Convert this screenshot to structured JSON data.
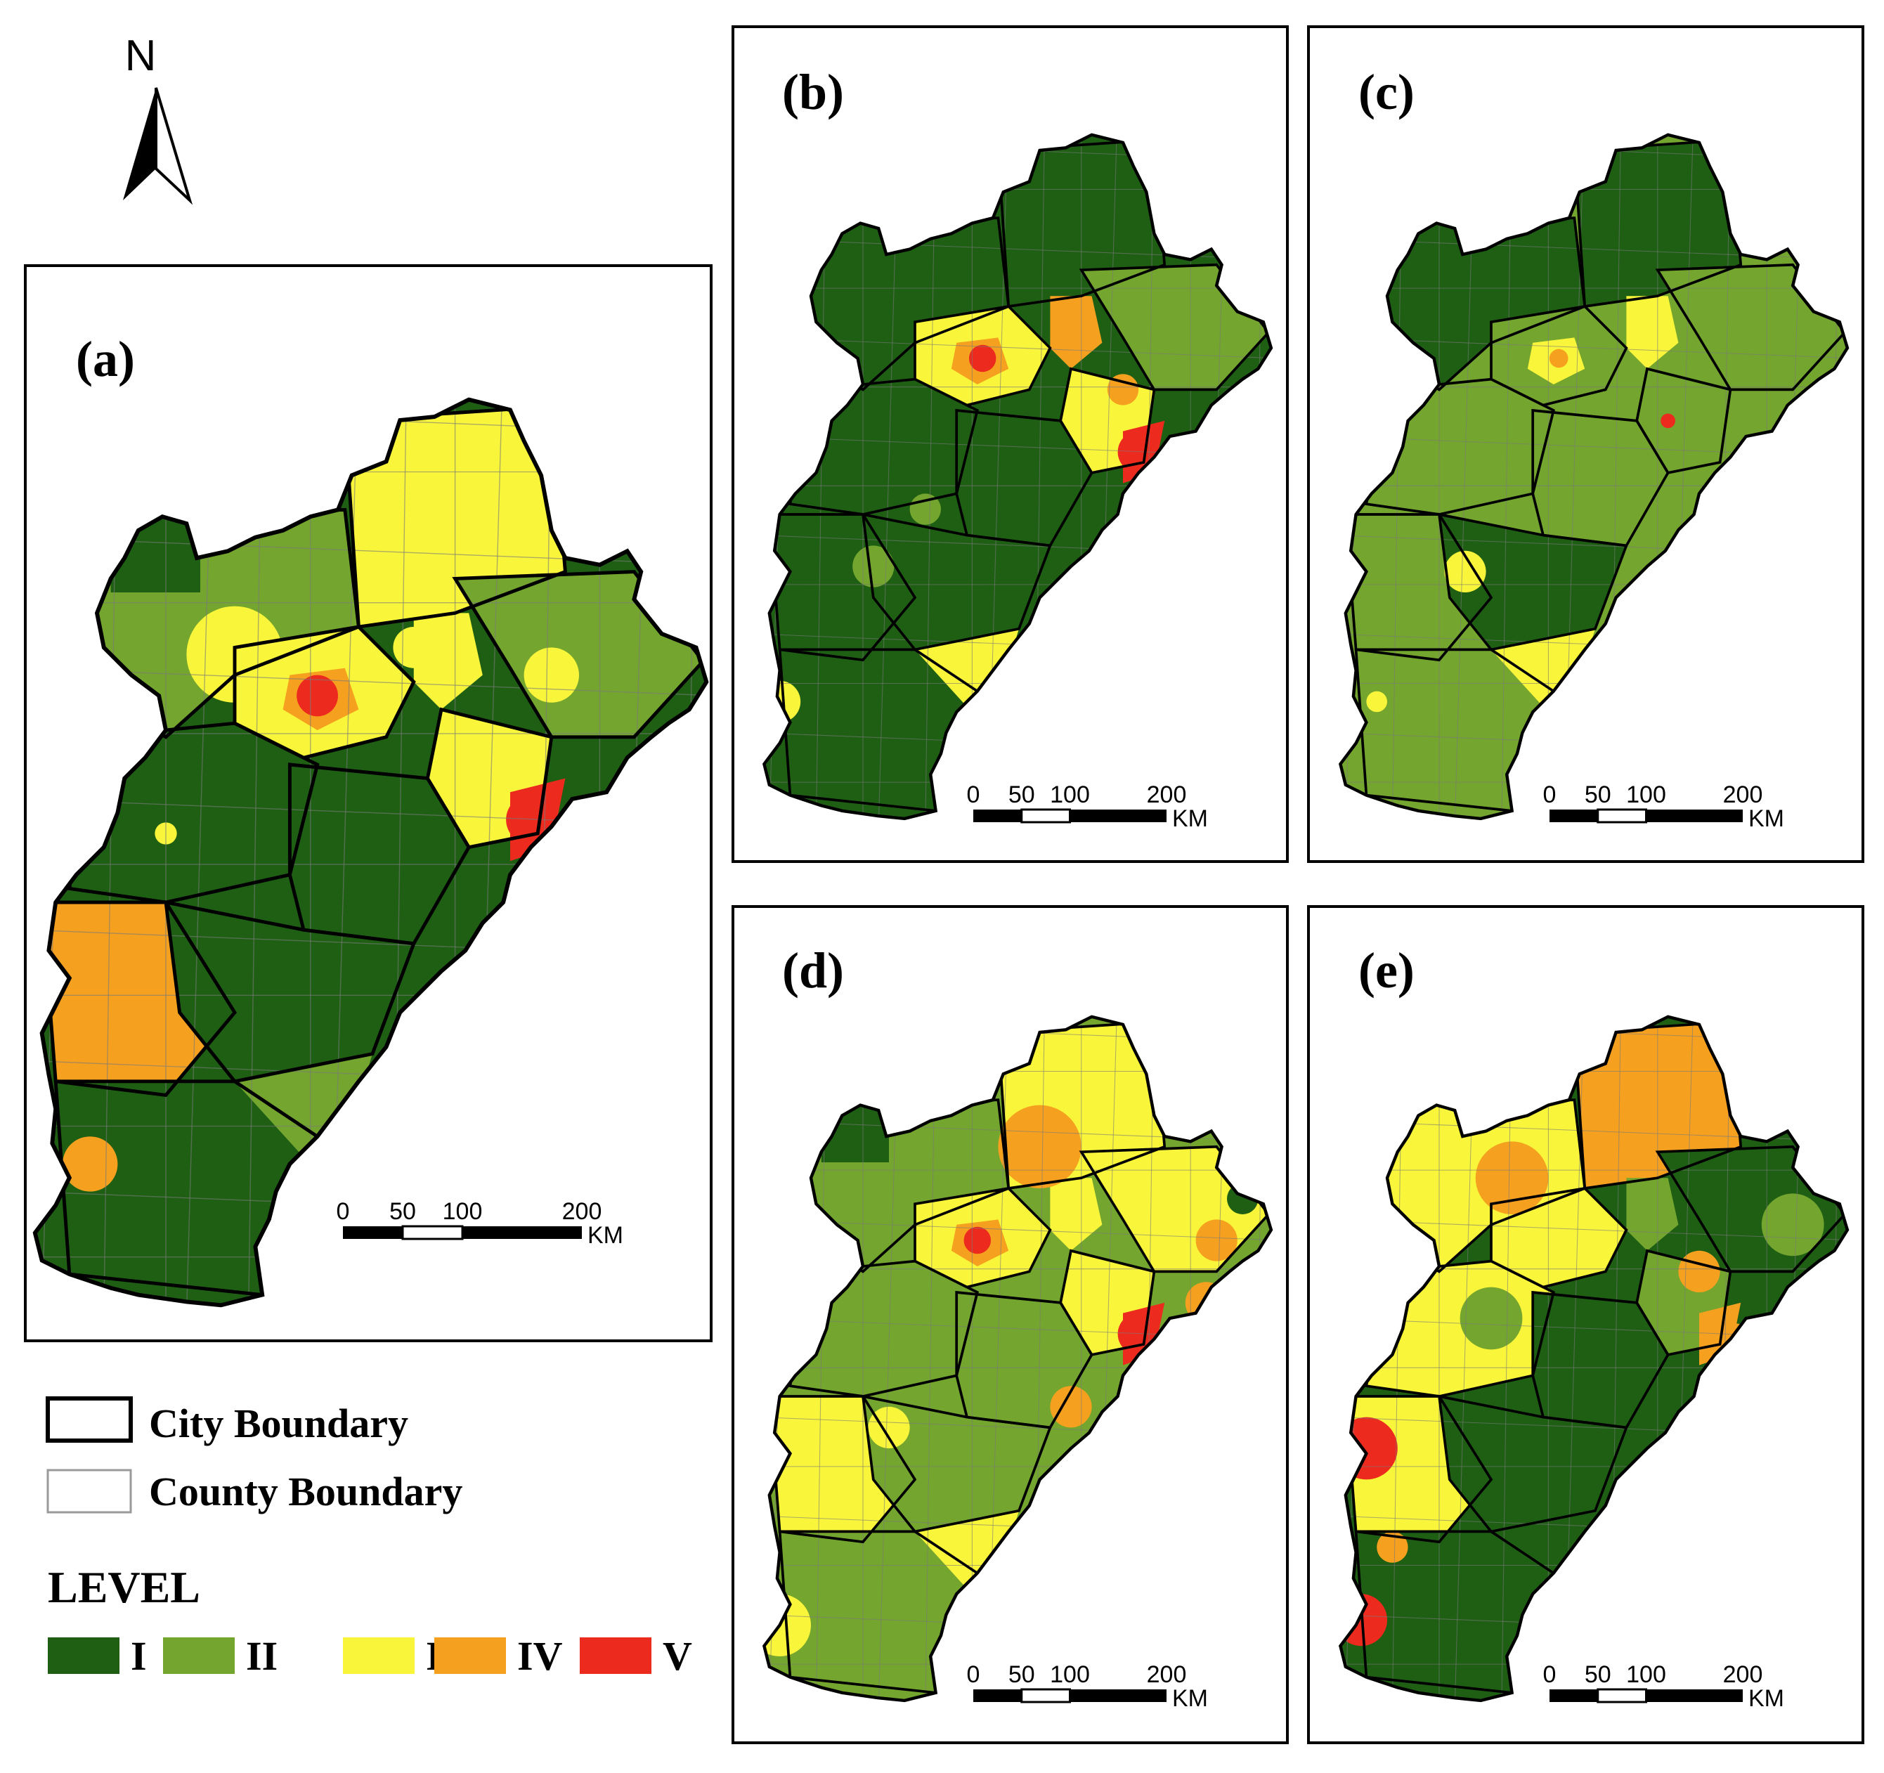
{
  "north": {
    "label": "N",
    "icon": "north-arrow-icon"
  },
  "levels": [
    {
      "key": "I",
      "color": "#1e5f14"
    },
    {
      "key": "II",
      "color": "#74a52e"
    },
    {
      "key": "III",
      "color": "#f9f53a"
    },
    {
      "key": "IV",
      "color": "#f6a01f"
    },
    {
      "key": "V",
      "color": "#ec2b1e"
    }
  ],
  "panels": [
    {
      "id": "a",
      "label": "(a)"
    },
    {
      "id": "b",
      "label": "(b)"
    },
    {
      "id": "c",
      "label": "(c)"
    },
    {
      "id": "d",
      "label": "(d)"
    },
    {
      "id": "e",
      "label": "(e)"
    }
  ],
  "scalebar": {
    "ticks": [
      "0",
      "50",
      "100",
      "200"
    ],
    "unit": "KM"
  },
  "legend": {
    "city_boundary": "City Boundary",
    "county_boundary": "County Boundary",
    "level_title": "LEVEL"
  }
}
